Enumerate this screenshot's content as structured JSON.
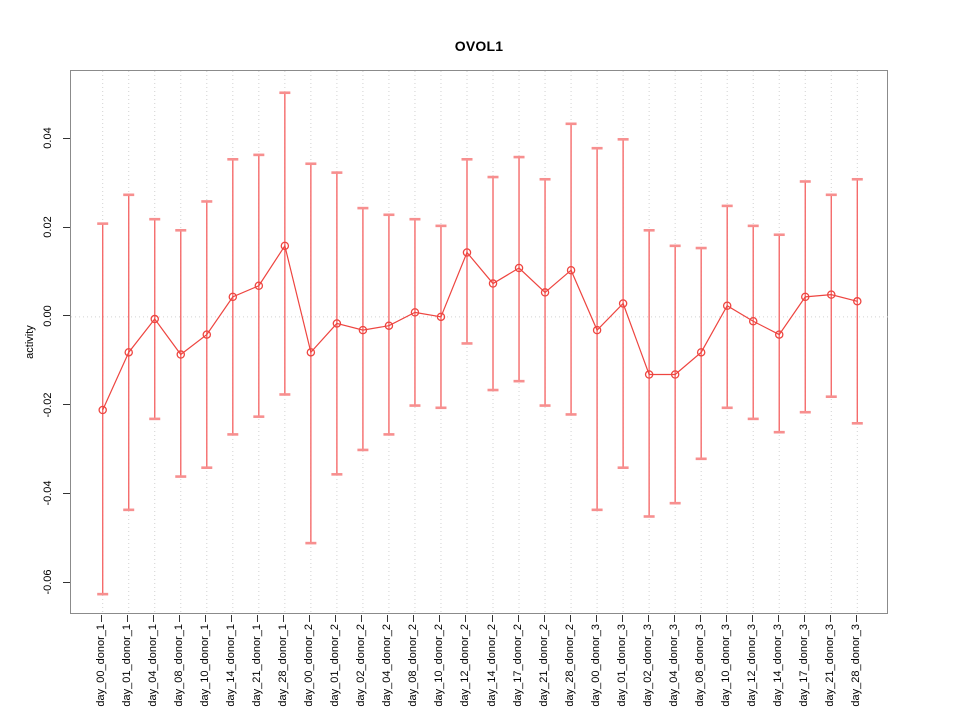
{
  "chart_data": {
    "type": "scatter",
    "title": "OVOL1",
    "xlabel": "",
    "ylabel": "activity",
    "legend_position": "none",
    "grid": "vertical dotted gridline at each category; horizontal dotted line at y=0",
    "ylim": [
      -0.0672,
      0.0554
    ],
    "yticks": [
      0.04,
      0.02,
      0.0,
      -0.02,
      -0.04,
      -0.06
    ],
    "ytick_labels": [
      "0.04",
      "0.02",
      "0.00",
      "-0.02",
      "-0.04",
      "-0.06"
    ],
    "categories": [
      "day_00_donor_1",
      "day_01_donor_1",
      "day_04_donor_1",
      "day_08_donor_1",
      "day_10_donor_1",
      "day_14_donor_1",
      "day_21_donor_1",
      "day_28_donor_1",
      "day_00_donor_2",
      "day_01_donor_2",
      "day_02_donor_2",
      "day_04_donor_2",
      "day_08_donor_2",
      "day_10_donor_2",
      "day_12_donor_2",
      "day_14_donor_2",
      "day_17_donor_2",
      "day_21_donor_2",
      "day_28_donor_2",
      "day_00_donor_3",
      "day_01_donor_3",
      "day_02_donor_3",
      "day_04_donor_3",
      "day_08_donor_3",
      "day_10_donor_3",
      "day_12_donor_3",
      "day_14_donor_3",
      "day_17_donor_3",
      "day_21_donor_3",
      "day_28_donor_3"
    ],
    "series": [
      {
        "name": "activity",
        "marker": "open-circle",
        "connected": true,
        "values": [
          -0.021,
          -0.008,
          -0.0005,
          -0.0085,
          -0.004,
          0.0045,
          0.007,
          0.016,
          -0.008,
          -0.0015,
          -0.003,
          -0.002,
          0.001,
          0.0,
          0.0145,
          0.0075,
          0.011,
          0.0055,
          0.0105,
          -0.003,
          0.003,
          -0.013,
          -0.013,
          -0.008,
          0.0025,
          -0.001,
          -0.004,
          0.0045,
          0.005,
          0.0035
        ],
        "error_upper": [
          0.021,
          0.0275,
          0.022,
          0.0195,
          0.026,
          0.0355,
          0.0365,
          0.0505,
          0.0345,
          0.0325,
          0.0245,
          0.023,
          0.022,
          0.0205,
          0.0355,
          0.0315,
          0.036,
          0.031,
          0.0435,
          0.038,
          0.04,
          0.0195,
          0.016,
          0.0155,
          0.025,
          0.0205,
          0.0185,
          0.0305,
          0.0275,
          0.031
        ],
        "error_lower": [
          -0.0625,
          -0.0435,
          -0.023,
          -0.036,
          -0.034,
          -0.0265,
          -0.0225,
          -0.0175,
          -0.051,
          -0.0355,
          -0.03,
          -0.0265,
          -0.02,
          -0.0205,
          -0.006,
          -0.0165,
          -0.0145,
          -0.02,
          -0.022,
          -0.0435,
          -0.034,
          -0.045,
          -0.042,
          -0.032,
          -0.0205,
          -0.023,
          -0.026,
          -0.0215,
          -0.018,
          -0.024
        ]
      }
    ],
    "colors": {
      "point": "#ee4540",
      "line": "#ee4540",
      "error_bar": "#f56b6b",
      "error_cap": "#f78f8f",
      "gridline": "#d2d2d2",
      "axis_border": "#8b8b8b",
      "tick": "#333333",
      "text": "#000000",
      "background": "#ffffff"
    }
  }
}
